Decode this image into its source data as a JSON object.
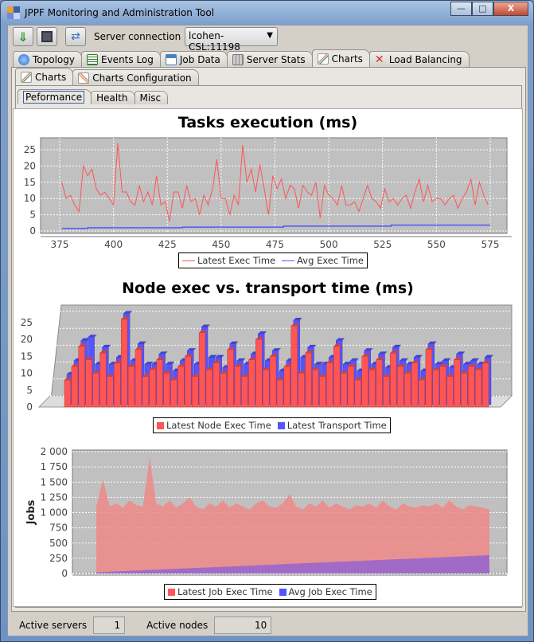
{
  "window": {
    "title": "JPPF Monitoring and Administration Tool",
    "minimize": "—",
    "maximize": "□",
    "close": "X"
  },
  "toolbar": {
    "server_connection_label": "Server connection",
    "server_connection_value": "lcohen-CSL:11198"
  },
  "main_tabs": [
    {
      "label": "Topology",
      "color": "#5a8fd8"
    },
    {
      "label": "Events Log",
      "color": "#2f7d2f"
    },
    {
      "label": "Job Data",
      "color": "#4a7fc0"
    },
    {
      "label": "Server Stats",
      "color": "#888888"
    },
    {
      "label": "Charts",
      "color": "#c04040"
    },
    {
      "label": "Load Balancing",
      "color": "#d03030"
    }
  ],
  "sub_tabs": [
    {
      "label": "Charts"
    },
    {
      "label": "Charts Configuration"
    }
  ],
  "chart_tabs": [
    {
      "label": "Peformance"
    },
    {
      "label": "Health"
    },
    {
      "label": "Misc"
    }
  ],
  "status": {
    "active_servers_label": "Active servers",
    "active_servers": "1",
    "active_nodes_label": "Active nodes",
    "active_nodes": "10"
  },
  "chart_data": [
    {
      "type": "line",
      "title": "Tasks execution (ms)",
      "xlim": [
        368,
        584
      ],
      "ylim": [
        0,
        27
      ],
      "xticks": [
        "375",
        "400",
        "425",
        "450",
        "475",
        "500",
        "525",
        "550",
        "575"
      ],
      "yticks": [
        "0",
        "5",
        "10",
        "15",
        "20",
        "25"
      ],
      "grid": true,
      "legend": "bottom",
      "series": [
        {
          "name": "Latest Exec Time",
          "color": "#ff5555",
          "x_start": 376,
          "x_step": 2,
          "values": [
            15,
            10,
            11,
            8,
            6,
            20,
            17,
            19,
            13,
            11,
            12,
            10,
            8,
            27,
            12,
            12,
            9,
            8,
            14,
            9,
            12,
            8,
            17,
            8,
            9,
            3,
            12,
            12,
            7,
            14,
            9,
            10,
            5,
            11,
            8,
            13,
            22,
            10,
            10,
            5,
            11,
            8,
            26.5,
            15,
            19,
            12,
            20.5,
            13,
            5,
            17,
            13,
            16,
            10,
            14,
            13,
            7,
            14,
            12,
            11,
            15,
            4,
            14,
            11,
            10,
            8,
            14,
            8,
            8,
            9,
            6,
            10,
            14,
            10,
            9,
            7,
            13,
            9,
            10,
            8,
            10,
            11,
            7,
            12,
            16,
            9,
            14,
            9,
            10,
            10,
            8,
            10,
            11,
            7,
            10,
            12,
            16,
            8,
            15,
            11,
            8
          ]
        },
        {
          "name": "Avg Exec Time",
          "color": "#5555ff",
          "steps": [
            [
              376,
              0.8
            ],
            [
              388,
              1.0
            ],
            [
              432,
              1.2
            ],
            [
              479,
              1.5
            ],
            [
              529,
              1.8
            ],
            [
              575,
              1.8
            ]
          ]
        }
      ]
    },
    {
      "type": "bar",
      "title": "Node exec vs. transport time (ms)",
      "ylim": [
        0,
        27
      ],
      "yticks": [
        "0",
        "5",
        "10",
        "15",
        "20",
        "25"
      ],
      "grid": true,
      "legend": "bottom",
      "three_d": true,
      "series": [
        {
          "name": "Latest Node Exec Time",
          "color": "#ff5555",
          "values": [
            8,
            12,
            18,
            14,
            10,
            16,
            9,
            13,
            26,
            12,
            17,
            9,
            11,
            14,
            10,
            8,
            12,
            15,
            9,
            22,
            11,
            13,
            10,
            17,
            12,
            9,
            14,
            20,
            11,
            15,
            8,
            12,
            24,
            10,
            16,
            11,
            9,
            13,
            18,
            10,
            12,
            8,
            15,
            11,
            14,
            9,
            16,
            12,
            10,
            13,
            8,
            17,
            11,
            12,
            9,
            14,
            10,
            12,
            11,
            13
          ]
        },
        {
          "name": "Latest Transport Time",
          "color": "#5555ff",
          "values": [
            9,
            13,
            19,
            20,
            12,
            17,
            12,
            14,
            27,
            13,
            18,
            12,
            12,
            15,
            12,
            10,
            13,
            16,
            12,
            23,
            14,
            14,
            11,
            18,
            13,
            12,
            15,
            21,
            13,
            16,
            10,
            13,
            25,
            14,
            17,
            12,
            12,
            14,
            19,
            12,
            13,
            10,
            16,
            12,
            15,
            11,
            17,
            13,
            12,
            14,
            10,
            18,
            12,
            13,
            11,
            15,
            12,
            13,
            12,
            14
          ]
        }
      ]
    },
    {
      "type": "area",
      "title": "",
      "ylabel": "Jobs",
      "ylim": [
        0,
        2000
      ],
      "yticks": [
        "0",
        "250",
        "500",
        "750",
        "1 000",
        "1 250",
        "1 500",
        "1 750",
        "2 000"
      ],
      "grid": true,
      "legend": "bottom",
      "series": [
        {
          "name": "Latest Job Exec Time",
          "color": "#ff5555",
          "values": [
            1100,
            1550,
            1100,
            1150,
            1080,
            1200,
            1120,
            1100,
            1900,
            1150,
            1100,
            1200,
            1080,
            1150,
            1250,
            1100,
            1050,
            1150,
            1100,
            1200,
            1080,
            1150,
            1100,
            1050,
            1150,
            1200,
            1100,
            1080,
            1150,
            1300,
            1100,
            1050,
            1150,
            1100,
            1200,
            1080,
            1150,
            1100,
            1050,
            1120,
            1100,
            1150,
            1080,
            1200,
            1100,
            1050,
            1150,
            1100,
            1080,
            1120,
            1100,
            1150,
            1080,
            1200,
            1100,
            1050,
            1120,
            1100,
            1080,
            1050
          ]
        },
        {
          "name": "Avg Job Exec Time",
          "color": "#5555ff",
          "values_linear": [
            20,
            300
          ]
        }
      ]
    }
  ]
}
